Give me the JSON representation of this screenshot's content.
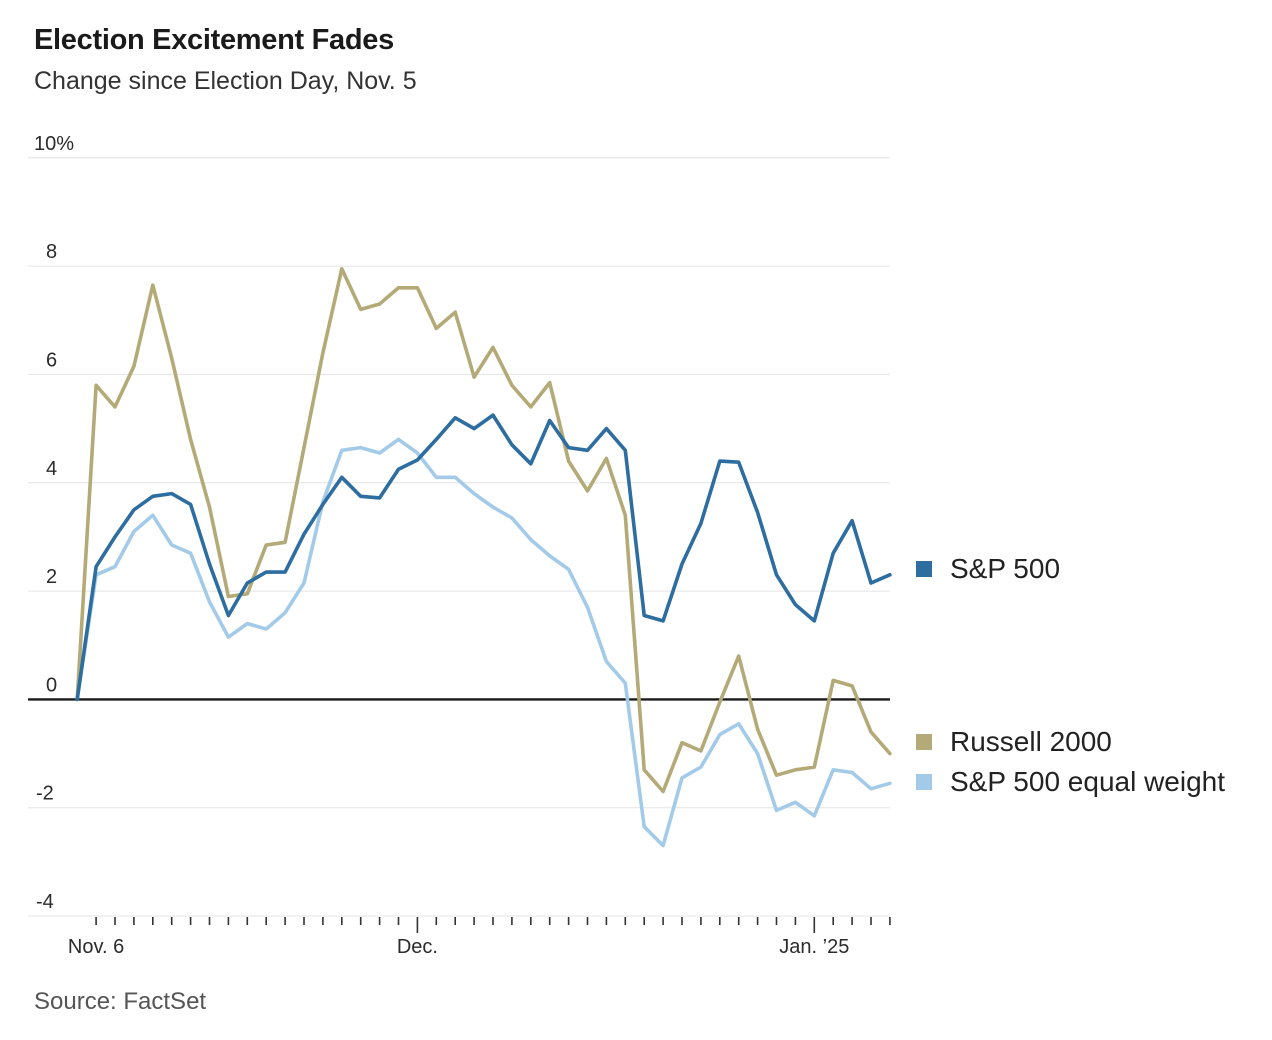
{
  "chart_data": {
    "type": "line",
    "title": "Election Excitement Fades",
    "subtitle": "Change since Election Day, Nov. 5",
    "source": "Source: FactSet",
    "unit": "percent",
    "grid": "horizontal-only",
    "legend_position": "right",
    "colors": {
      "sp500": "#2d6d9f",
      "russell2000": "#b3aa77",
      "equalweight": "#a3cbe9",
      "zero_line": "#1a1a1a",
      "gridline": "#e4e4e4"
    },
    "y_axis": {
      "range": [
        -4,
        10
      ],
      "ticks": [
        {
          "label": "10%",
          "value": 10
        },
        {
          "label": "8",
          "value": 8
        },
        {
          "label": "6",
          "value": 6
        },
        {
          "label": "4",
          "value": 4
        },
        {
          "label": "2",
          "value": 2
        },
        {
          "label": "0",
          "value": 0
        },
        {
          "label": "-2",
          "value": -2
        },
        {
          "label": "-4",
          "value": -4
        }
      ]
    },
    "x_axis": {
      "num_points": 44,
      "description": "daily points from Election Day Nov. 5 through early January",
      "major_tick_indices": [
        18,
        39
      ],
      "labels": [
        {
          "index": 1,
          "label": "Nov. 6"
        },
        {
          "index": 18,
          "label": "Dec."
        },
        {
          "index": 39,
          "label": "Jan. ’25"
        }
      ]
    },
    "series": [
      {
        "name": "S&P 500",
        "key": "sp500",
        "color": "#2d6d9f",
        "values": [
          0,
          2.45,
          3.0,
          3.5,
          3.75,
          3.8,
          3.6,
          2.5,
          1.55,
          2.15,
          2.35,
          2.35,
          3.05,
          3.6,
          4.1,
          3.75,
          3.72,
          4.25,
          4.42,
          4.8,
          5.2,
          5.0,
          5.25,
          4.7,
          4.35,
          5.15,
          4.65,
          4.6,
          5.0,
          4.6,
          1.55,
          1.45,
          2.5,
          3.25,
          4.4,
          4.38,
          3.45,
          2.3,
          1.75,
          1.45,
          2.7,
          3.3,
          2.15,
          2.3
        ]
      },
      {
        "name": "Russell 2000",
        "key": "russell2000",
        "color": "#b3aa77",
        "values": [
          0,
          5.8,
          5.4,
          6.15,
          7.65,
          6.3,
          4.8,
          3.55,
          1.9,
          1.95,
          2.85,
          2.9,
          4.65,
          6.4,
          7.95,
          7.2,
          7.3,
          7.6,
          7.6,
          6.85,
          7.15,
          5.95,
          6.5,
          5.8,
          5.4,
          5.85,
          4.4,
          3.85,
          4.45,
          3.4,
          -1.3,
          -1.7,
          -0.8,
          -0.95,
          -0.05,
          0.8,
          -0.55,
          -1.4,
          -1.3,
          -1.25,
          0.35,
          0.25,
          -0.6,
          -1.0
        ]
      },
      {
        "name": "S&P 500 equal weight",
        "key": "equalweight",
        "color": "#a3cbe9",
        "values": [
          0,
          2.3,
          2.45,
          3.1,
          3.4,
          2.85,
          2.7,
          1.8,
          1.15,
          1.4,
          1.3,
          1.6,
          2.15,
          3.65,
          4.6,
          4.65,
          4.55,
          4.8,
          4.55,
          4.1,
          4.1,
          3.8,
          3.55,
          3.35,
          2.95,
          2.65,
          2.4,
          1.7,
          0.7,
          0.3,
          -2.35,
          -2.7,
          -1.45,
          -1.25,
          -0.65,
          -0.45,
          -1.0,
          -2.05,
          -1.9,
          -2.15,
          -1.3,
          -1.35,
          -1.65,
          -1.55
        ]
      }
    ]
  }
}
